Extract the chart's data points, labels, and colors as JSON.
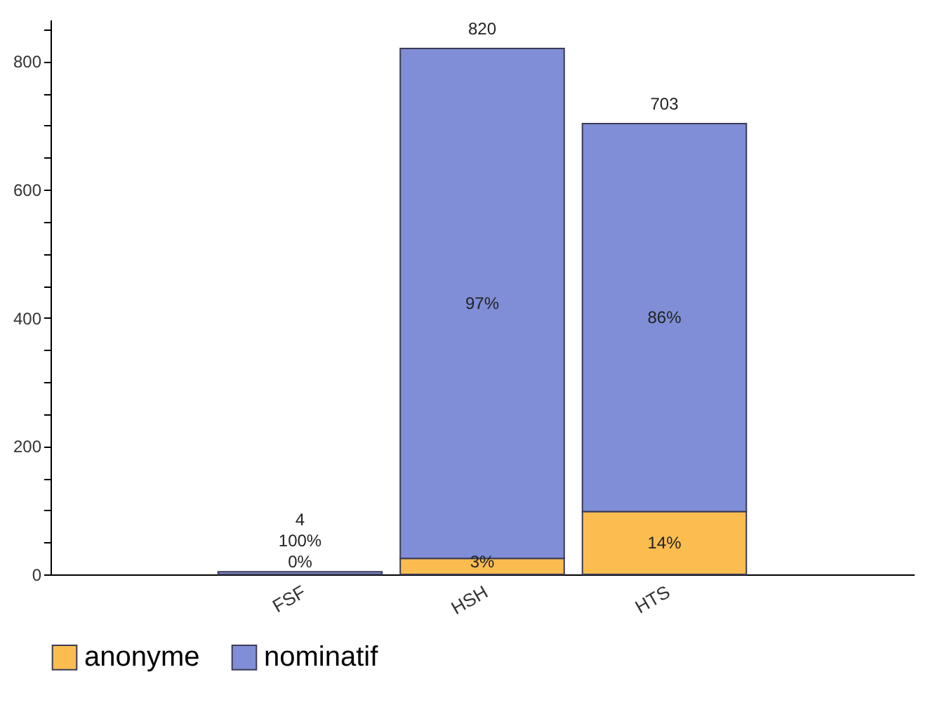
{
  "chart_data": {
    "type": "bar",
    "stacked": true,
    "categories": [
      "FSF",
      "HSH",
      "HTS"
    ],
    "series": [
      {
        "name": "anonyme",
        "color": "#fcbd50",
        "values": [
          0,
          25,
          98
        ]
      },
      {
        "name": "nominatif",
        "color": "#7f8ed6",
        "values": [
          4,
          795,
          605
        ]
      }
    ],
    "annotations": [
      "0%",
      "100%",
      "3%",
      "97%",
      "14%",
      "86%"
    ],
    "totals": [
      "4",
      "820",
      "703"
    ],
    "ylim": [
      0,
      865
    ],
    "yticks": [
      0,
      200,
      400,
      600,
      800
    ],
    "grid": false,
    "legend": "bottom"
  }
}
